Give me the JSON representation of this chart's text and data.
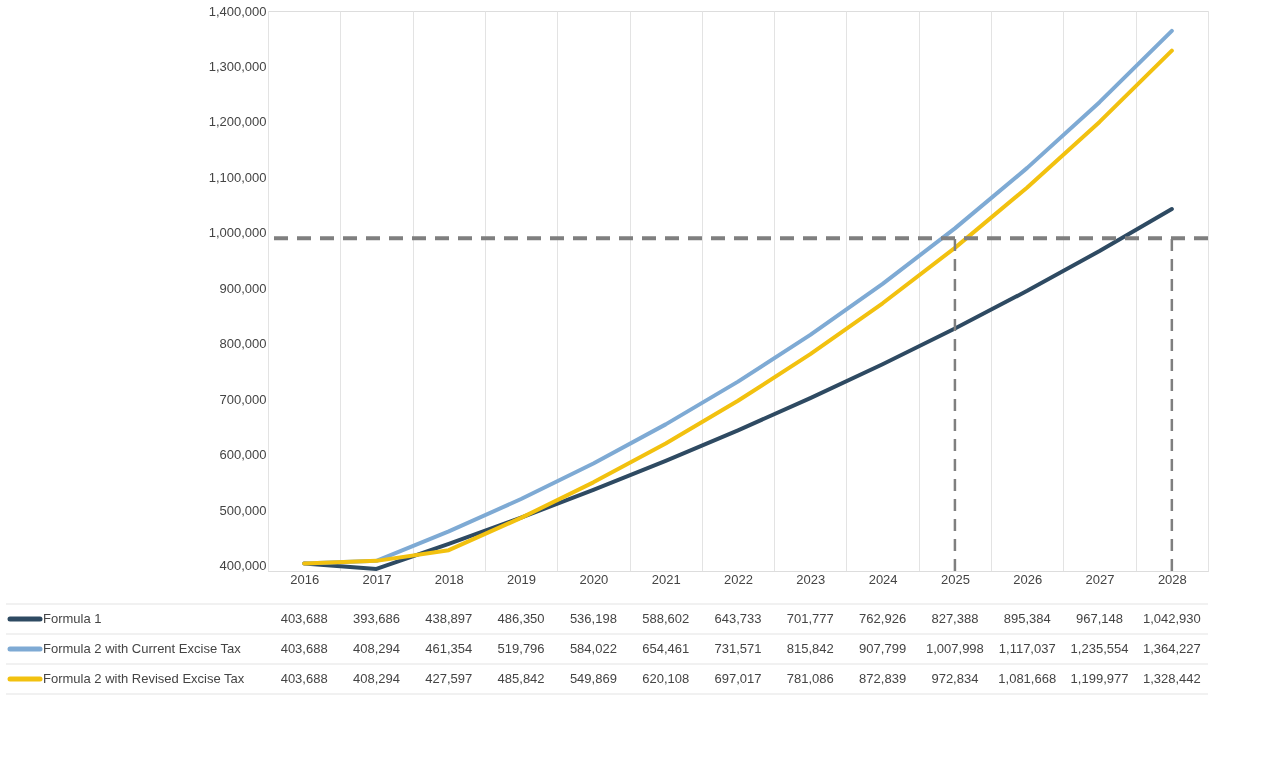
{
  "chart_data": {
    "type": "line",
    "categories": [
      "2016",
      "2017",
      "2018",
      "2019",
      "2020",
      "2021",
      "2022",
      "2023",
      "2024",
      "2025",
      "2026",
      "2027",
      "2028"
    ],
    "series": [
      {
        "name": "Formula 1",
        "color": "#2e4a62",
        "values": [
          403688,
          393686,
          438897,
          486350,
          536198,
          588602,
          643733,
          701777,
          762926,
          827388,
          895384,
          967148,
          1042930
        ]
      },
      {
        "name": "Formula 2 with Current Excise Tax",
        "color": "#7eaad4",
        "values": [
          403688,
          408294,
          461354,
          519796,
          584022,
          654461,
          731571,
          815842,
          907799,
          1007998,
          1117037,
          1235554,
          1364227
        ]
      },
      {
        "name": "Formula 2 with Revised Excise Tax",
        "color": "#f2c10f",
        "values": [
          403688,
          408294,
          427597,
          485842,
          549869,
          620108,
          697017,
          781086,
          872839,
          972834,
          1081668,
          1199977,
          1328442
        ]
      }
    ],
    "ylim": [
      390000,
      1400000
    ],
    "yticks": [
      {
        "value": 400000,
        "label": "400,000"
      },
      {
        "value": 500000,
        "label": "500,000"
      },
      {
        "value": 600000,
        "label": "600,000"
      },
      {
        "value": 700000,
        "label": "700,000"
      },
      {
        "value": 800000,
        "label": "800,000"
      },
      {
        "value": 900000,
        "label": "900,000"
      },
      {
        "value": 1000000,
        "label": "1,000,000"
      },
      {
        "value": 1100000,
        "label": "1,100,000"
      },
      {
        "value": 1200000,
        "label": "1,200,000"
      },
      {
        "value": 1300000,
        "label": "1,300,000"
      },
      {
        "value": 1400000,
        "label": "1,400,000"
      }
    ],
    "grid": "x",
    "legend": "bottom",
    "value_labels": [
      [
        "403,688",
        "393,686",
        "438,897",
        "486,350",
        "536,198",
        "588,602",
        "643,733",
        "701,777",
        "762,926",
        "827,388",
        "895,384",
        "967,148",
        "1,042,930"
      ],
      [
        "403,688",
        "408,294",
        "461,354",
        "519,796",
        "584,022",
        "654,461",
        "731,571",
        "815,842",
        "907,799",
        "1,007,998",
        "1,117,037",
        "1,235,554",
        "1,364,227"
      ],
      [
        "403,688",
        "408,294",
        "427,597",
        "485,842",
        "549,869",
        "620,108",
        "697,017",
        "781,086",
        "872,839",
        "972,834",
        "1,081,668",
        "1,199,977",
        "1,328,442"
      ]
    ],
    "marker": "none",
    "line_style": "solid",
    "ref_lines": [
      {
        "axis": "y",
        "value": 990000,
        "color": "#7f7f7f",
        "line_style": "dashed"
      },
      {
        "axis": "x",
        "value": "2025",
        "color": "#7f7f7f",
        "line_style": "dashed"
      },
      {
        "axis": "x",
        "value": "2028",
        "color": "#7f7f7f",
        "line_style": "dashed"
      }
    ]
  }
}
